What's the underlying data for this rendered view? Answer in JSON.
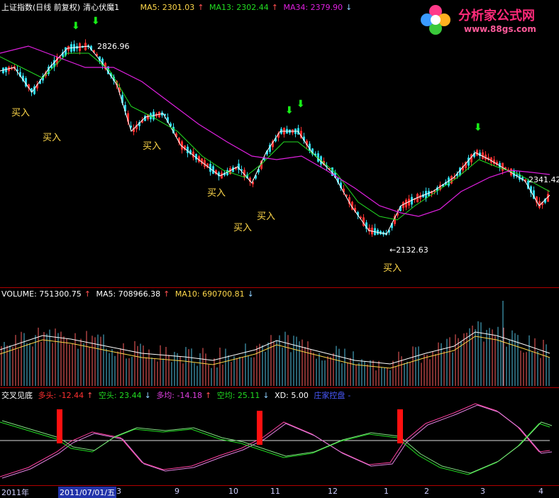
{
  "main": {
    "title": "上证指数(日线 前复权)",
    "formula": "清心伏魔1",
    "ma5": "MA5: 2301.03",
    "ma13": "MA13: 2302.44",
    "ma34": "MA34: 2379.90",
    "ma5_dir": "↑",
    "ma13_dir": "↑",
    "ma34_dir": "↓",
    "high_label": "2826.96",
    "low_label": "←2132.63",
    "last_label": "2341.42",
    "buy": "买入",
    "colors": {
      "ma5": "#ffffff",
      "ma13": "#22dd22",
      "ma34": "#e020e0",
      "up": "#ff3030",
      "down": "#30d8e8"
    }
  },
  "volume": {
    "label": "VOLUME: 751300.75",
    "label_dir": "↑",
    "ma5": "MA5: 708966.38",
    "ma5_dir": "↑",
    "ma10": "MA10: 690700.81",
    "ma10_dir": "↓"
  },
  "indicator": {
    "name": "交叉见底",
    "duotou": "多头: -12.44",
    "duotou_dir": "↑",
    "kongtou": "空头: 23.44",
    "kongtou_dir": "↓",
    "duojun": "多均: -14.18",
    "duojun_dir": "↑",
    "kongjun": "空均: 25.11",
    "kongjun_dir": "↓",
    "xd": "XD: 5.00",
    "zhuang": "庄家控盘",
    "zhuang_suffix": "-"
  },
  "xaxis": {
    "ticks": [
      "2011年",
      "2011/07/01/五",
      "3",
      "9",
      "10",
      "11",
      "12",
      "1",
      "2",
      "3",
      "4"
    ]
  },
  "logo": {
    "title": "分析家公式网",
    "url": "www.88gs.com"
  },
  "icons": [
    "green-arrow-down-icon",
    "flower-logo-icon"
  ]
}
